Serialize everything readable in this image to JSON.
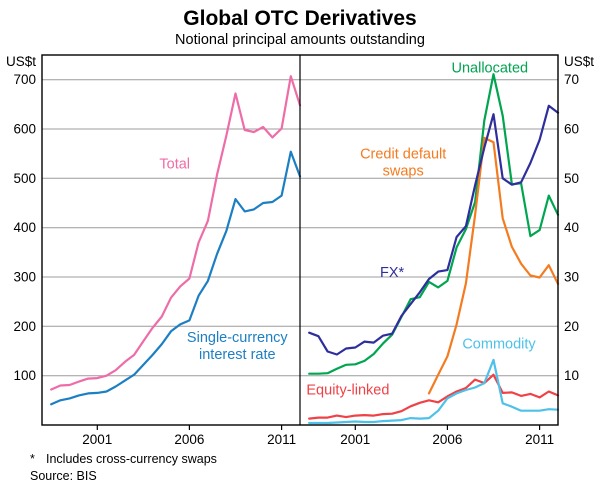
{
  "title": "Global OTC Derivatives",
  "subtitle": "Notional principal amounts outstanding",
  "axis_units": {
    "left": "US$t",
    "right": "US$t"
  },
  "footnote_marker": "*",
  "footnote_text": "Includes cross-currency swaps",
  "source_text": "Source: BIS",
  "chart_data": {
    "type": "line",
    "x_label_note": "semiannual observations, Jun 1998 - Dec 2011",
    "x_range": [
      1998,
      2012
    ],
    "x_ticks": [
      2001,
      2006,
      2011
    ],
    "x_semiannual_years": [
      1998.5,
      1999,
      1999.5,
      2000,
      2000.5,
      2001,
      2001.5,
      2002,
      2002.5,
      2003,
      2003.5,
      2004,
      2004.5,
      2005,
      2005.5,
      2006,
      2006.5,
      2007,
      2007.5,
      2008,
      2008.5,
      2009,
      2009.5,
      2010,
      2010.5,
      2011,
      2011.5,
      2012
    ],
    "grid": true,
    "panels": [
      {
        "id": "left",
        "ylim": [
          0,
          750
        ],
        "yticks": [
          100,
          200,
          300,
          400,
          500,
          600,
          700
        ],
        "tick_side": "left",
        "series": [
          {
            "name": "Total",
            "color": "#ee6ca8",
            "values": [
              72,
              80,
              81,
              88,
              94,
              95,
              100,
              111,
              128,
              142,
              170,
              197,
              220,
              258,
              281,
              297,
              370,
              414,
              508,
              586,
              672,
              598,
              594,
              604,
              583,
              601,
              707,
              648
            ]
          },
          {
            "name": "Single-currency interest rate",
            "color": "#1d7fc3",
            "values": [
              42,
              50,
              54,
              60,
              64,
              65,
              68,
              78,
              90,
              102,
              122,
              142,
              164,
              190,
              204,
              212,
              262,
              292,
              347,
              393,
              458,
              433,
              437,
              450,
              452,
              465,
              554,
              504
            ]
          }
        ],
        "labels": [
          {
            "lines": [
              "Total"
            ],
            "x": 2005.2,
            "y": 520,
            "color": "#ee6ca8"
          },
          {
            "lines": [
              "Single-currency",
              "interest rate"
            ],
            "x": 2008.6,
            "y": 168,
            "color": "#1d7fc3"
          }
        ]
      },
      {
        "id": "right",
        "ylim": [
          0,
          75
        ],
        "yticks": [
          10,
          20,
          30,
          40,
          50,
          60,
          70
        ],
        "tick_side": "right",
        "series": [
          {
            "name": "Unallocated",
            "color": "#00a550",
            "values": [
              10.4,
              10.4,
              10.5,
              11.4,
              12.2,
              12.3,
              13,
              14.4,
              16.5,
              18.3,
              21.9,
              25.5,
              25.9,
              29,
              27.9,
              29.2,
              36,
              39.7,
              45.2,
              61.7,
              71.1,
              62.7,
              48.8,
              49,
              38.3,
              39.5,
              46.5,
              42.6
            ]
          },
          {
            "name": "Credit default swaps",
            "color": "#f47b20",
            "values": [
              null,
              null,
              null,
              null,
              null,
              null,
              null,
              null,
              null,
              null,
              null,
              null,
              null,
              6.4,
              10.2,
              13.9,
              20.4,
              28.7,
              42.6,
              58.2,
              57.3,
              41.9,
              36.1,
              32.7,
              30.3,
              29.9,
              32.4,
              28.6
            ]
          },
          {
            "name": "FX*",
            "color": "#2e2e9d",
            "values": [
              18.7,
              18,
              14.9,
              14.3,
              15.5,
              15.7,
              16.9,
              16.7,
              18.1,
              18.5,
              22.1,
              24.5,
              26.9,
              29.6,
              31.1,
              31.4,
              38.1,
              40.3,
              48.6,
              56.2,
              63,
              50,
              48.7,
              49.2,
              53.1,
              57.8,
              64.7,
              63.3
            ]
          },
          {
            "name": "Equity-linked",
            "color": "#ef4146",
            "values": [
              1.3,
              1.5,
              1.5,
              1.9,
              1.6,
              1.9,
              2,
              1.9,
              2.2,
              2.3,
              2.8,
              3.8,
              4.5,
              5,
              4.6,
              5.8,
              6.8,
              7.5,
              9.2,
              8.5,
              10.2,
              6.5,
              6.6,
              5.9,
              6.3,
              5.6,
              6.8,
              6
            ]
          },
          {
            "name": "Commodity",
            "color": "#4ec1e8",
            "values": [
              0.4,
              0.4,
              0.4,
              0.5,
              0.6,
              0.7,
              0.6,
              0.6,
              0.8,
              0.9,
              1,
              1.4,
              1.3,
              1.4,
              2.9,
              5.4,
              6.4,
              7.1,
              7.6,
              8.5,
              13.2,
              4.4,
              3.7,
              2.9,
              2.9,
              2.9,
              3.2,
              3.1
            ]
          }
        ],
        "labels": [
          {
            "lines": [
              "Unallocated"
            ],
            "x": 2008.3,
            "y": 71.5,
            "color": "#00a550"
          },
          {
            "lines": [
              "Credit default",
              "swaps"
            ],
            "x": 2003.6,
            "y": 54,
            "color": "#f47b20"
          },
          {
            "lines": [
              "FX*"
            ],
            "x": 2003.0,
            "y": 30,
            "color": "#2e2e9d"
          },
          {
            "lines": [
              "Commodity"
            ],
            "x": 2008.8,
            "y": 15.5,
            "color": "#4ec1e8"
          },
          {
            "lines": [
              "Equity-linked"
            ],
            "x": 2000.6,
            "y": 6.2,
            "color": "#ef4146"
          }
        ]
      }
    ]
  }
}
